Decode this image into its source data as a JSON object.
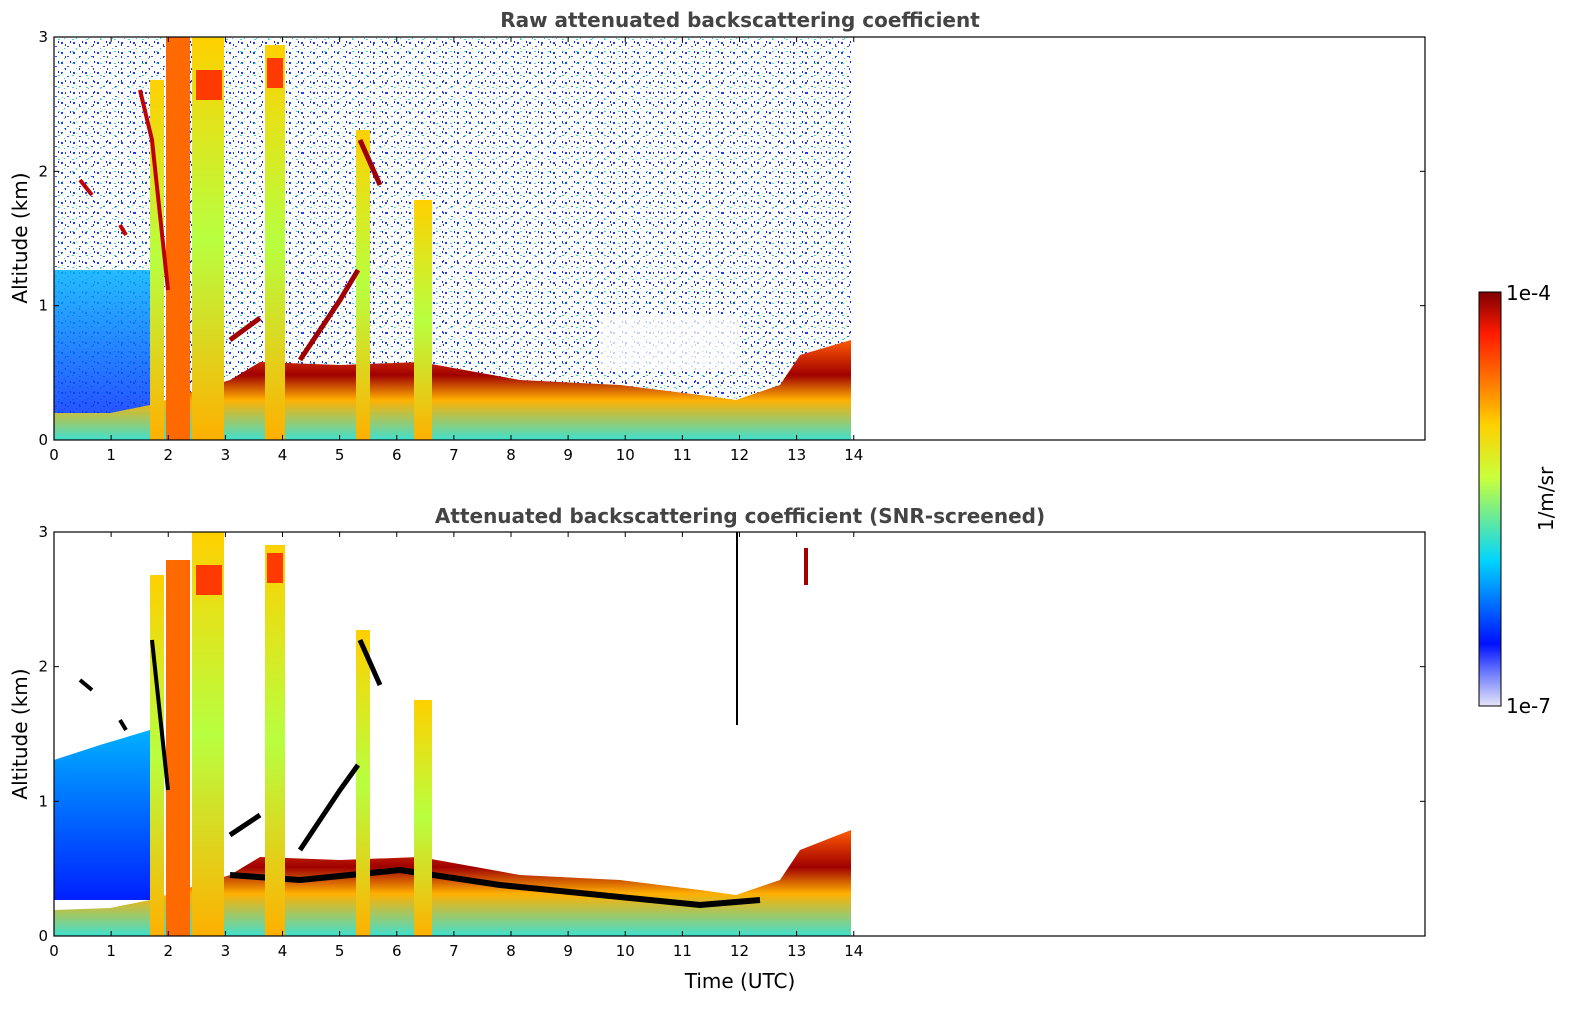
{
  "chart_data": [
    {
      "type": "heatmap",
      "title": "Raw attenuated backscattering coefficient",
      "xlabel": "",
      "ylabel": "Altitude (km)",
      "xlim": [
        0,
        24
      ],
      "ylim": [
        0,
        3
      ],
      "x_ticks": [
        0,
        1,
        2,
        3,
        4,
        5,
        6,
        7,
        8,
        9,
        10,
        11,
        12,
        13,
        14
      ],
      "y_ticks": [
        0,
        1,
        2,
        3
      ],
      "data_extent_x": [
        0,
        14
      ],
      "grid": false,
      "colorscale": "jet",
      "features": [
        {
          "description": "surface aerosol layer top (km)",
          "x": [
            0,
            1,
            1.7,
            3,
            4,
            5,
            6,
            7,
            8,
            9,
            10,
            11,
            11.9,
            12.5,
            13,
            13.5,
            14
          ],
          "y": [
            0.25,
            0.25,
            0.3,
            0.5,
            0.55,
            0.55,
            0.55,
            0.5,
            0.45,
            0.4,
            0.4,
            0.35,
            0.3,
            0.4,
            0.6,
            0.8,
            0.9
          ]
        },
        {
          "description": "vertical plume columns (hours)",
          "x": [
            1.8,
            2.1,
            2.3,
            2.7,
            3.9,
            4.3,
            5.4,
            6.4,
            6.6
          ]
        }
      ]
    },
    {
      "type": "heatmap",
      "title": "Attenuated backscattering coefficient (SNR-screened)",
      "xlabel": "Time (UTC)",
      "ylabel": "Altitude (km)",
      "xlim": [
        0,
        24
      ],
      "ylim": [
        0,
        3
      ],
      "x_ticks": [
        0,
        1,
        2,
        3,
        4,
        5,
        6,
        7,
        8,
        9,
        10,
        11,
        12,
        13,
        14
      ],
      "y_ticks": [
        0,
        1,
        2,
        3
      ],
      "data_extent_x": [
        0,
        14
      ],
      "grid": false,
      "colorscale": "jet"
    }
  ],
  "colorbar": {
    "label": "1/m/sr",
    "min_label": "1e-7",
    "max_label": "1e-4",
    "scale": "log",
    "range": [
      1e-07,
      0.0001
    ],
    "colors": [
      "#e6e6f7",
      "#0010ff",
      "#00d4ff",
      "#c8ff3c",
      "#ffb000",
      "#ff2000",
      "#7f0000"
    ]
  }
}
